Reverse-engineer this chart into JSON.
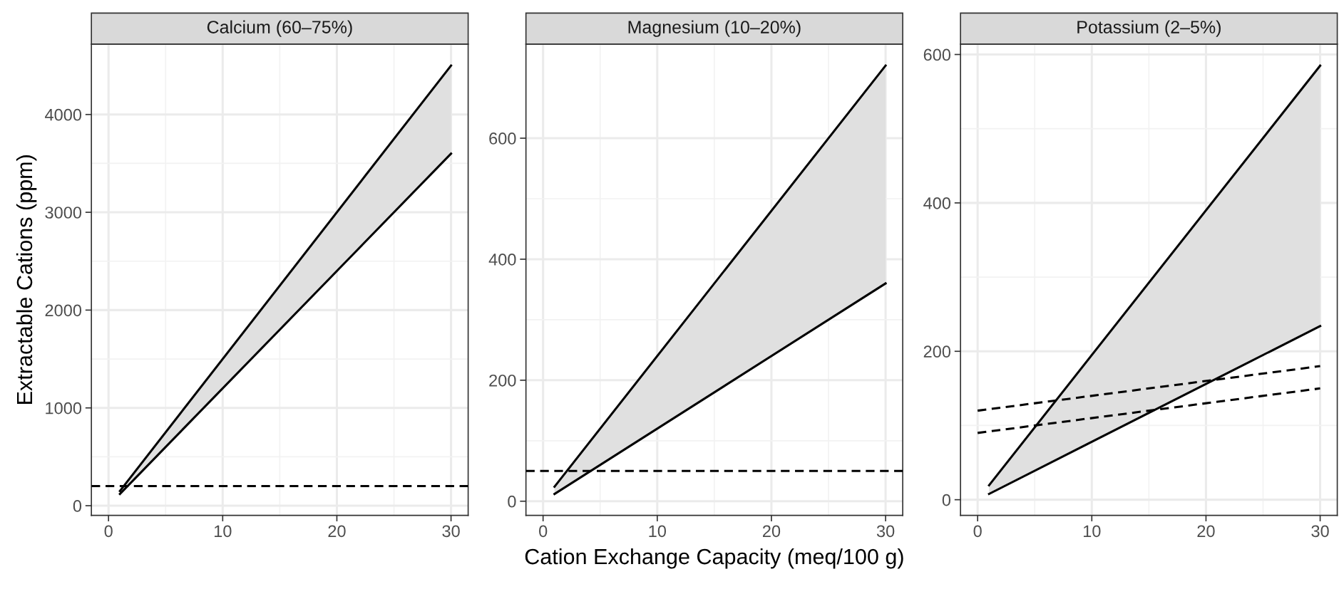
{
  "chart_data": [
    {
      "type": "line",
      "title": "Calcium (60–75%)",
      "ylabel": "Extractable Cations (ppm)",
      "xlim": [
        -1.5,
        31.5
      ],
      "xticks": [
        0,
        10,
        20,
        30
      ],
      "ylim": [
        -99,
        4719
      ],
      "yticks": [
        0,
        1000,
        2000,
        3000,
        4000
      ],
      "grid": true,
      "legend": false,
      "series": [
        {
          "color": "#000000",
          "x": [
            1,
            30
          ],
          "values": [
            150,
            4500
          ],
          "lower": [
            120,
            3600
          ],
          "upper": [
            150,
            4500
          ]
        },
        {
          "color": "#000000",
          "x": [
            1,
            30
          ],
          "values": [
            120,
            3600
          ]
        }
      ],
      "ref_lines": [
        {
          "axis": "y",
          "value": 200,
          "color": "#000000",
          "line_style": "dashed"
        }
      ]
    },
    {
      "type": "line",
      "title": "Magnesium (10–20%)",
      "xlabel": "Cation Exchange Capacity (meq/100 g)",
      "xlim": [
        -1.5,
        31.5
      ],
      "xticks": [
        0,
        10,
        20,
        30
      ],
      "ylim": [
        -23.4,
        755.4
      ],
      "yticks": [
        0,
        200,
        400,
        600
      ],
      "grid": true,
      "legend": false,
      "series": [
        {
          "color": "#000000",
          "x": [
            1,
            30
          ],
          "values": [
            24,
            720
          ],
          "lower": [
            12,
            360
          ],
          "upper": [
            24,
            720
          ]
        },
        {
          "color": "#000000",
          "x": [
            1,
            30
          ],
          "values": [
            12,
            360
          ]
        }
      ],
      "ref_lines": [
        {
          "axis": "y",
          "value": 50,
          "color": "#000000",
          "line_style": "dashed"
        }
      ]
    },
    {
      "type": "line",
      "title": "Potassium (2–5%)",
      "xlim": [
        -1.5,
        31.5
      ],
      "xticks": [
        0,
        10,
        20,
        30
      ],
      "ylim": [
        -21.1,
        613.9
      ],
      "yticks": [
        0,
        200,
        400,
        600
      ],
      "grid": true,
      "legend": false,
      "series": [
        {
          "color": "#000000",
          "x": [
            1,
            30
          ],
          "values": [
            19.5,
            585
          ],
          "lower": [
            7.8,
            234
          ],
          "upper": [
            19.5,
            585
          ]
        },
        {
          "color": "#000000",
          "x": [
            1,
            30
          ],
          "values": [
            7.8,
            234
          ]
        },
        {
          "color": "#000000",
          "x": [
            0,
            30
          ],
          "values": [
            120,
            180
          ],
          "line_style": "dashed"
        },
        {
          "color": "#000000",
          "x": [
            0,
            30
          ],
          "values": [
            90,
            150
          ],
          "line_style": "dashed"
        }
      ]
    }
  ]
}
